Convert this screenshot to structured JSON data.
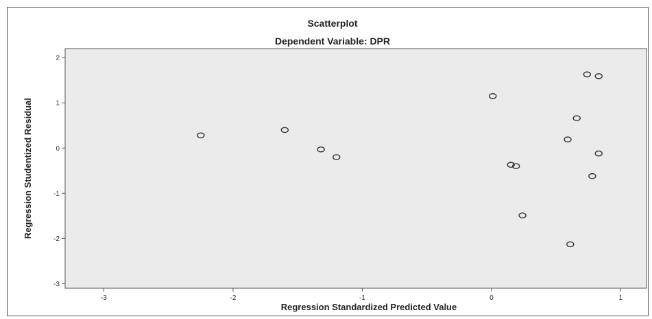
{
  "chart_data": {
    "type": "scatter",
    "title": "Scatterplot",
    "subtitle": "Dependent Variable: DPR",
    "xlabel": "Regression Standardized Predicted Value",
    "ylabel": "Regression Studentized Residual",
    "xlim": [
      -3.3,
      1.2
    ],
    "ylim": [
      -3.1,
      2.2
    ],
    "xticks": [
      -3,
      -2,
      -1,
      0,
      1
    ],
    "yticks": [
      -3,
      -2,
      -1,
      0,
      1,
      2
    ],
    "grid": false,
    "plot_background": "#ebebeb",
    "marker_color": "#333333",
    "points": [
      {
        "x": -2.25,
        "y": 0.28
      },
      {
        "x": -1.6,
        "y": 0.4
      },
      {
        "x": -1.32,
        "y": -0.03
      },
      {
        "x": -1.2,
        "y": -0.2
      },
      {
        "x": 0.01,
        "y": 1.15
      },
      {
        "x": 0.15,
        "y": -0.37
      },
      {
        "x": 0.19,
        "y": -0.4
      },
      {
        "x": 0.24,
        "y": -1.49
      },
      {
        "x": 0.59,
        "y": 0.19
      },
      {
        "x": 0.61,
        "y": -2.13
      },
      {
        "x": 0.66,
        "y": 0.66
      },
      {
        "x": 0.74,
        "y": 1.63
      },
      {
        "x": 0.78,
        "y": -0.62
      },
      {
        "x": 0.83,
        "y": 1.59
      },
      {
        "x": 0.83,
        "y": -0.12
      }
    ]
  }
}
